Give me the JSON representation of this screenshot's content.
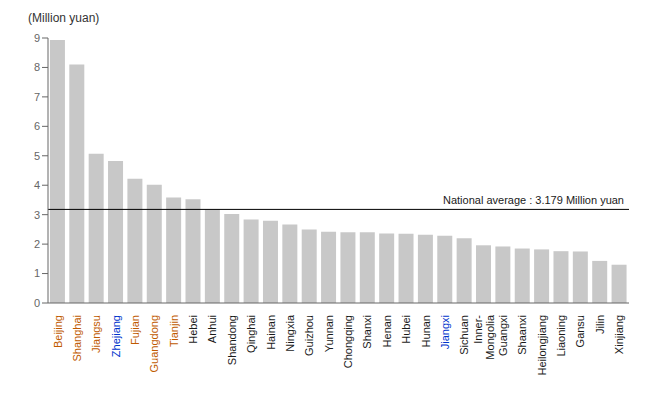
{
  "chart_data": {
    "type": "bar",
    "ylabel": "(Million yuan)",
    "categories": [
      "Beijing",
      "Shanghai",
      "Jiangsu",
      "Zhejiang",
      "Fujian",
      "Guangdong",
      "Tianjin",
      "Hebei",
      "Anhui",
      "Shandong",
      "Qinghai",
      "Hainan",
      "Ningxia",
      "Guizhou",
      "Yunnan",
      "Chongqing",
      "Shanxi",
      "Henan",
      "Hubei",
      "Hunan",
      "Jiangxi",
      "Sichuan",
      "Inner-\nMongolia",
      "Guangxi",
      "Shaanxi",
      "Heilongjiang",
      "Liaoning",
      "Gansu",
      "Jilin",
      "Xinjiang"
    ],
    "values": [
      8.93,
      8.1,
      5.07,
      4.82,
      4.22,
      4.02,
      3.58,
      3.52,
      3.18,
      3.02,
      2.84,
      2.79,
      2.67,
      2.5,
      2.42,
      2.4,
      2.4,
      2.36,
      2.35,
      2.32,
      2.28,
      2.2,
      1.96,
      1.92,
      1.85,
      1.82,
      1.76,
      1.75,
      1.43,
      1.3
    ],
    "color": "#c8c8c8",
    "label_colors": [
      "#c05a00",
      "#c05a00",
      "#c05a00",
      "#0033cc",
      "#c05a00",
      "#c05a00",
      "#c05a00",
      "#1a1a1a",
      "#1a1a1a",
      "#1a1a1a",
      "#1a1a1a",
      "#1a1a1a",
      "#1a1a1a",
      "#1a1a1a",
      "#1a1a1a",
      "#1a1a1a",
      "#1a1a1a",
      "#1a1a1a",
      "#1a1a1a",
      "#1a1a1a",
      "#0033cc",
      "#1a1a1a",
      "#1a1a1a",
      "#1a1a1a",
      "#1a1a1a",
      "#1a1a1a",
      "#1a1a1a",
      "#1a1a1a",
      "#1a1a1a",
      "#1a1a1a"
    ],
    "national_average": 3.179,
    "national_average_label": "National average : 3.179 Million yuan",
    "national_average_color": "#000000",
    "ylim": [
      0,
      9
    ],
    "yticks": [
      0,
      1,
      2,
      3,
      4,
      5,
      6,
      7,
      8,
      9
    ],
    "grid": false
  }
}
